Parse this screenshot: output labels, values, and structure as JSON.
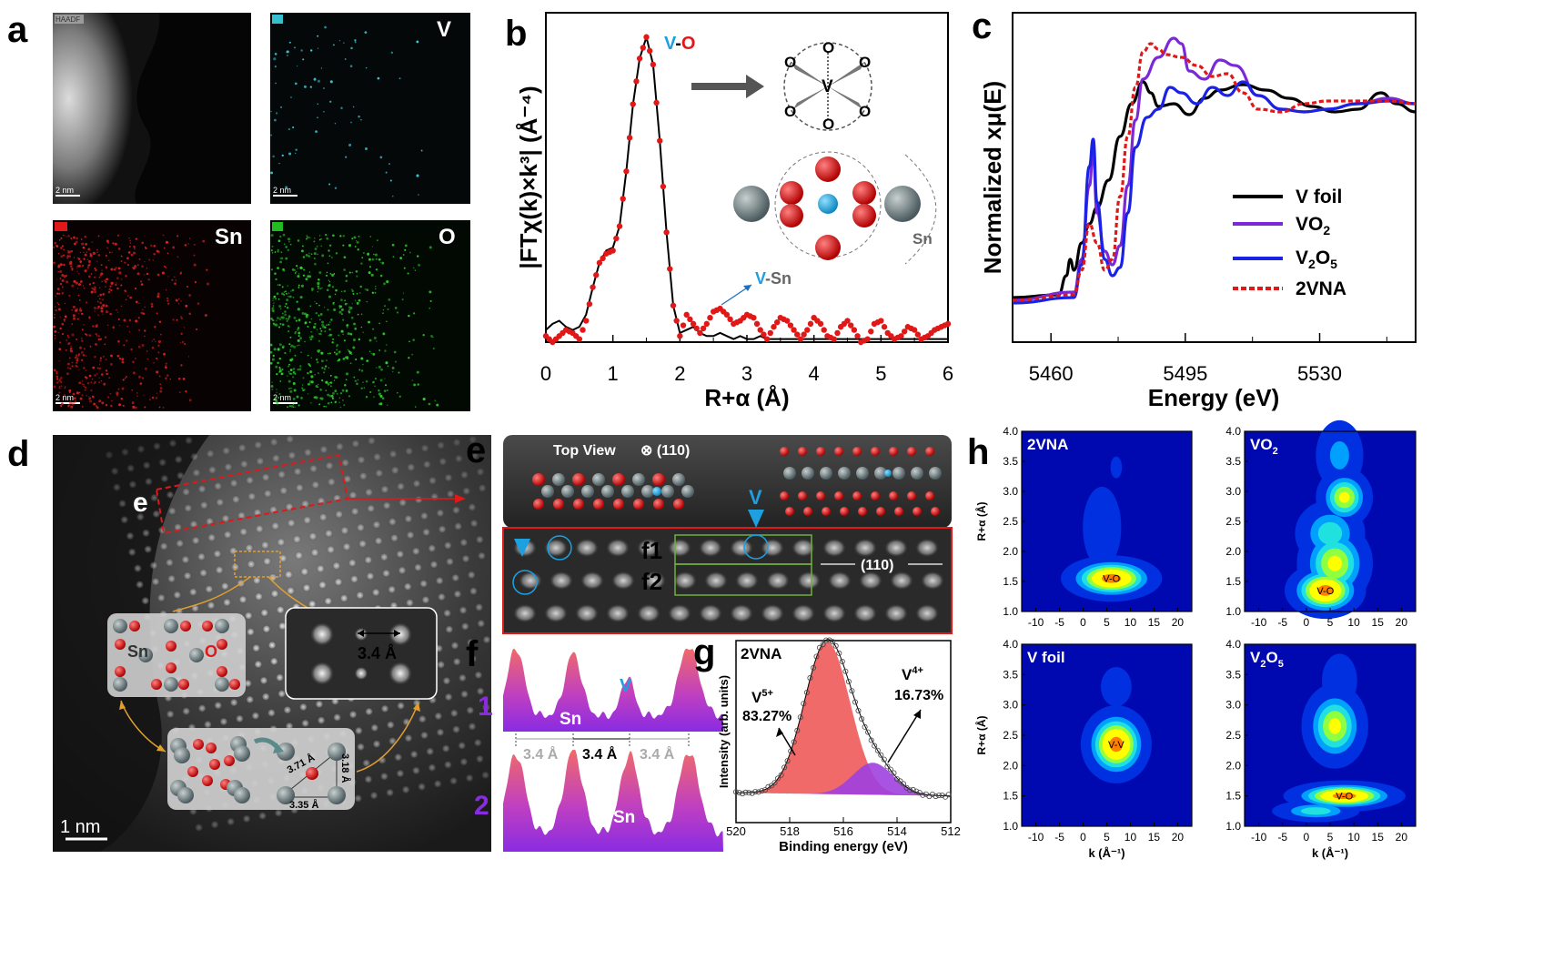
{
  "panel_letters": {
    "a": "a",
    "b": "b",
    "c": "c",
    "d": "d",
    "e": "e",
    "f": "f",
    "g": "g",
    "h": "h"
  },
  "panel_a": {
    "tiles": [
      {
        "tag": "HAADF",
        "element": "",
        "scale": "2 nm",
        "color": "#888888"
      },
      {
        "tag": "V",
        "element": "V",
        "scale": "2 nm",
        "color": "#35c0d0"
      },
      {
        "tag": "Sn",
        "element": "Sn",
        "scale": "2 nm",
        "color": "#e01818"
      },
      {
        "tag": "O",
        "element": "O",
        "scale": "2 nm",
        "color": "#22bb22"
      }
    ]
  },
  "panel_b": {
    "ylabel": "|FTχ(k)×k³| (Å⁻⁴)",
    "xlabel": "R+α (Å)",
    "xticks": [
      "0",
      "1",
      "2",
      "3",
      "4",
      "5",
      "6"
    ],
    "peak_label_v": "V",
    "peak_label_dash": "-",
    "peak_label_o": "O",
    "vsn_v": "V",
    "vsn_rest": "-Sn",
    "sn_label": "Sn",
    "atoms": {
      "o": "O",
      "v": "V"
    },
    "colors": {
      "v": "#1ca0e0",
      "o": "#e01818",
      "fit": "#000000",
      "data": "#e01818"
    }
  },
  "chart_data": [
    {
      "type": "line",
      "xlabel": "R+α (Å)",
      "ylabel": "|FTχ(k)×k³| (Å⁻⁴)",
      "xlim": [
        0,
        6
      ],
      "ylim": [
        0,
        1.05
      ],
      "series": [
        {
          "x": [
            0,
            0.1,
            0.2,
            0.3,
            0.4,
            0.5,
            0.6,
            0.7,
            0.8,
            0.9,
            1.0,
            1.1,
            1.2,
            1.3,
            1.4,
            1.5,
            1.6,
            1.7,
            1.8,
            1.9,
            2.0,
            2.1,
            2.2,
            2.3,
            2.4,
            2.5,
            2.6,
            2.7,
            2.8,
            2.9,
            3.0,
            3.1,
            3.2,
            3.3,
            3.4,
            3.5,
            3.6,
            3.7,
            3.8,
            3.9,
            4.0,
            4.1,
            4.2,
            4.3,
            4.4,
            4.5,
            4.6,
            4.7,
            4.8,
            4.9,
            5.0,
            5.1,
            5.2,
            5.3,
            5.4,
            5.5,
            5.6,
            5.7,
            5.8,
            5.9,
            6.0
          ],
          "y": [
            0.04,
            0.06,
            0.07,
            0.05,
            0.04,
            0.05,
            0.09,
            0.18,
            0.26,
            0.3,
            0.31,
            0.38,
            0.56,
            0.78,
            0.93,
            1.0,
            0.91,
            0.66,
            0.36,
            0.12,
            0.03,
            0.04,
            0.05,
            0.03,
            0.02,
            0.02,
            0.03,
            0.02,
            0.01,
            0.02,
            0.01,
            0.01,
            0.02,
            0.01,
            0.01,
            0.01,
            0.01,
            0.01,
            0.01,
            0.01,
            0.01,
            0.01,
            0.01,
            0.01,
            0.01,
            0.01,
            0.01,
            0.01,
            0.01,
            0.01,
            0.01,
            0.01,
            0.01,
            0.01,
            0.01,
            0.01,
            0.01,
            0.01,
            0.01,
            0.01,
            0.01
          ]
        },
        {
          "x": [
            0,
            0.1,
            0.2,
            0.3,
            0.4,
            0.5,
            0.6,
            0.7,
            0.8,
            0.9,
            1.0,
            1.1,
            1.2,
            1.3,
            1.4,
            1.5,
            1.6,
            1.7,
            1.8,
            1.9,
            2.0,
            2.1,
            2.2,
            2.3,
            2.4,
            2.5,
            2.6,
            2.7,
            2.8,
            2.9,
            3.0,
            3.1,
            3.2,
            3.3,
            3.4,
            3.5,
            3.6,
            3.7,
            3.8,
            3.9,
            4.0,
            4.1,
            4.2,
            4.3,
            4.4,
            4.5,
            4.6,
            4.7,
            4.8,
            4.9,
            5.0,
            5.1,
            5.2,
            5.3,
            5.4,
            5.5,
            5.6,
            5.7,
            5.8,
            5.9,
            6.0
          ],
          "y": [
            0.02,
            0.0,
            0.02,
            0.04,
            0.03,
            0.01,
            0.07,
            0.18,
            0.26,
            0.29,
            0.3,
            0.38,
            0.56,
            0.78,
            0.93,
            1.0,
            0.91,
            0.66,
            0.36,
            0.12,
            0.02,
            0.09,
            0.06,
            0.03,
            0.06,
            0.1,
            0.11,
            0.09,
            0.06,
            0.07,
            0.09,
            0.08,
            0.04,
            0.01,
            0.05,
            0.08,
            0.07,
            0.04,
            0.01,
            0.04,
            0.08,
            0.06,
            0.02,
            0.01,
            0.05,
            0.07,
            0.04,
            0.0,
            0.01,
            0.06,
            0.07,
            0.03,
            0.01,
            0.02,
            0.05,
            0.04,
            0.01,
            0.02,
            0.04,
            0.05,
            0.06
          ]
        }
      ]
    },
    {
      "type": "line",
      "xlabel": "Energy (eV)",
      "ylabel": "Normalized xμ(E)",
      "xlim": [
        5450,
        5555
      ],
      "xticks": [
        5460,
        5495,
        5530
      ],
      "series": [
        {
          "name": "V foil",
          "color": "#000000",
          "dash": false,
          "x": [
            5450,
            5462,
            5464,
            5465,
            5466,
            5468,
            5470,
            5472,
            5475,
            5478,
            5481,
            5484,
            5486,
            5488,
            5492,
            5496,
            5500,
            5504,
            5510,
            5516,
            5522,
            5528,
            5534,
            5540,
            5546,
            5550,
            5555
          ],
          "y": [
            0.03,
            0.04,
            0.11,
            0.17,
            0.13,
            0.23,
            0.3,
            0.36,
            0.46,
            0.62,
            0.74,
            0.82,
            0.78,
            0.73,
            0.74,
            0.7,
            0.76,
            0.79,
            0.81,
            0.79,
            0.76,
            0.73,
            0.71,
            0.72,
            0.78,
            0.74,
            0.71
          ]
        },
        {
          "name": "VO₂",
          "color": "#7a28d8",
          "dash": false,
          "x": [
            5450,
            5466,
            5468,
            5470,
            5471,
            5472,
            5474,
            5476,
            5478,
            5480,
            5482,
            5484,
            5488,
            5492,
            5494,
            5496,
            5500,
            5504,
            5508,
            5514,
            5520,
            5526,
            5532,
            5540,
            5548,
            5555
          ],
          "y": [
            0.02,
            0.05,
            0.17,
            0.44,
            0.56,
            0.34,
            0.2,
            0.15,
            0.22,
            0.44,
            0.68,
            0.83,
            0.91,
            0.98,
            0.96,
            0.86,
            0.83,
            0.9,
            0.88,
            0.77,
            0.72,
            0.71,
            0.72,
            0.74,
            0.76,
            0.74
          ]
        },
        {
          "name": "V₂O₅",
          "color": "#1a22e8",
          "dash": false,
          "x": [
            5450,
            5466,
            5468,
            5470,
            5471,
            5472,
            5474,
            5476,
            5478,
            5480,
            5482,
            5485,
            5488,
            5491,
            5494,
            5498,
            5502,
            5506,
            5510,
            5514,
            5520,
            5526,
            5532,
            5540,
            5548,
            5555
          ],
          "y": [
            0.01,
            0.03,
            0.15,
            0.51,
            0.61,
            0.38,
            0.17,
            0.11,
            0.14,
            0.34,
            0.58,
            0.69,
            0.72,
            0.8,
            0.78,
            0.74,
            0.8,
            0.77,
            0.82,
            0.77,
            0.72,
            0.71,
            0.72,
            0.74,
            0.75,
            0.74
          ]
        },
        {
          "name": "2VNA",
          "color": "#e01818",
          "dash": true,
          "x": [
            5450,
            5466,
            5468,
            5470,
            5472,
            5474,
            5476,
            5478,
            5480,
            5482,
            5484,
            5486,
            5488,
            5490,
            5494,
            5498,
            5502,
            5506,
            5510,
            5514,
            5520,
            5526,
            5532,
            5540,
            5548,
            5555
          ],
          "y": [
            0.02,
            0.04,
            0.13,
            0.3,
            0.23,
            0.13,
            0.17,
            0.4,
            0.62,
            0.8,
            0.93,
            0.96,
            0.94,
            0.92,
            0.91,
            0.88,
            0.84,
            0.85,
            0.78,
            0.72,
            0.71,
            0.74,
            0.75,
            0.75,
            0.75,
            0.74
          ]
        }
      ]
    },
    {
      "type": "line",
      "xlabel": "Binding energy (eV)",
      "ylabel": "Intensity (arb. units)",
      "xlim": [
        520,
        512
      ],
      "xticks": [
        520,
        518,
        516,
        514,
        512
      ],
      "components": [
        {
          "label": "V⁵⁺",
          "percent": "83.27%",
          "center": 516.6,
          "color": "#f06a6a"
        },
        {
          "label": "V⁴⁺",
          "percent": "16.73%",
          "center": 514.9,
          "color": "#a040e0"
        }
      ]
    }
  ],
  "panel_c": {
    "ylabel": "Normalized xμ(E)",
    "xlabel": "Energy (eV)",
    "xticks": [
      "5460",
      "5495",
      "5530"
    ],
    "legend": [
      {
        "label": "V foil",
        "color": "#000000",
        "dash": false
      },
      {
        "label": "VO",
        "sub": "2",
        "color": "#7a28d8",
        "dash": false
      },
      {
        "label": "V",
        "sub": "2",
        "tail": "O",
        "sub2": "5",
        "color": "#1a22e8",
        "dash": false
      },
      {
        "label": "2VNA",
        "color": "#e01818",
        "dash": true
      }
    ]
  },
  "panel_d": {
    "e_label": "e",
    "sn": "Sn",
    "o": "O",
    "spacing": "3.4 Å",
    "d1": "3.71 Å",
    "d2": "3.18 Å",
    "d3": "3.35 Å",
    "scale": "1 nm"
  },
  "panel_e": {
    "top_view": "Top View",
    "zone": "⊗ (110)",
    "v": "V",
    "f1": "f1",
    "f2": "f2",
    "plane": "(110)"
  },
  "panel_f": {
    "row1": "1",
    "row2": "2",
    "v": "V",
    "sn1": "Sn",
    "sn2": "Sn",
    "d_gray": "3.4 Å",
    "d_black": "3.4 Å"
  },
  "panel_g": {
    "sample": "2VNA",
    "ylabel": "Intensity (arb. units)",
    "xlabel": "Binding energy (eV)",
    "xticks": [
      "520",
      "518",
      "516",
      "514",
      "512"
    ],
    "v5": "V",
    "v5sup": "5+",
    "v5pct": "83.27%",
    "v4": "V",
    "v4sup": "4+",
    "v4pct": "16.73%"
  },
  "panel_h": {
    "maps": [
      {
        "title": "2VNA",
        "sub": "",
        "peak": "V-O"
      },
      {
        "title": "VO",
        "sub": "2",
        "peak": "V-O"
      },
      {
        "title": "V foil",
        "sub": "",
        "peak": "V-V"
      },
      {
        "title": "V",
        "sub": "2",
        "tail": "O",
        "sub2": "5",
        "peak": "V-O"
      }
    ],
    "yticks": [
      "1.0",
      "1.5",
      "2.0",
      "2.5",
      "3.0",
      "3.5",
      "4.0"
    ],
    "xticks": [
      "-10",
      "-5",
      "0",
      "5",
      "10",
      "15",
      "20"
    ],
    "ylabel": "R+α (Å)",
    "xlabel": "k (Å⁻¹)"
  }
}
